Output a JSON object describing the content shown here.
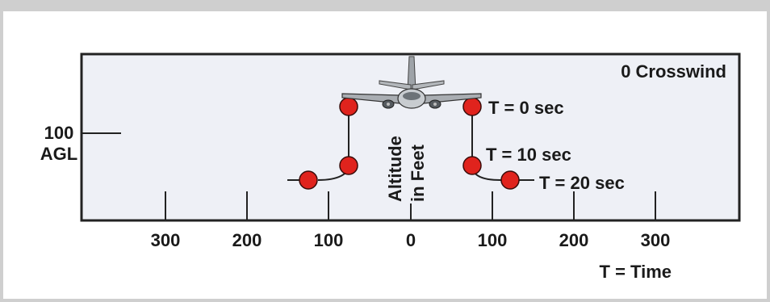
{
  "diagram": {
    "corner_label": "0 Crosswind",
    "altitude_value": "100",
    "altitude_unit": "AGL",
    "axis_ticks": [
      "300",
      "200",
      "100",
      "0",
      "100",
      "200",
      "300"
    ],
    "axis_caption": "T = Time",
    "vertical_label_line1": "Altitude",
    "vertical_label_line2": "in Feet",
    "time_labels": [
      "T = 0 sec",
      "T = 10 sec",
      "T = 20 sec"
    ],
    "colors": {
      "panel": "#eef0f6",
      "border": "#222222",
      "marker": "#e0231d",
      "frame": "#cfcfcf"
    },
    "icon": "airplane-icon"
  }
}
